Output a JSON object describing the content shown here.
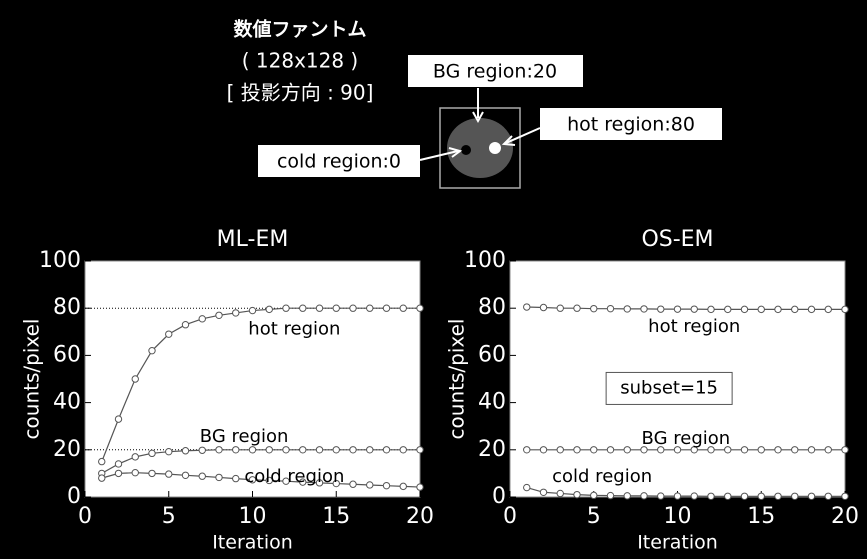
{
  "phantom": {
    "title_lines": [
      "数値ファントム",
      "( 128x128 )",
      "[ 投影方向 : 90]"
    ],
    "labels": [
      "BG region:20",
      "hot region:80",
      "cold region:0"
    ]
  },
  "chart_data": [
    {
      "type": "line",
      "title": "ML-EM",
      "x_label": "Iteration",
      "y_label": "counts/pixel",
      "x": [
        1,
        2,
        3,
        4,
        5,
        6,
        7,
        8,
        9,
        10,
        11,
        12,
        13,
        14,
        15,
        16,
        17,
        18,
        19,
        20
      ],
      "xlim": [
        0,
        20
      ],
      "xticks": [
        0,
        5,
        10,
        15,
        20
      ],
      "ylim": [
        0,
        100
      ],
      "yticks": [
        0,
        20,
        40,
        60,
        80,
        100
      ],
      "reference_lines": [
        80,
        20
      ],
      "series": [
        {
          "name": "hot region",
          "color": "#555555",
          "values": [
            15,
            33,
            50,
            62,
            69,
            73,
            75.5,
            77,
            78,
            79,
            79.5,
            80,
            80,
            80,
            80,
            80,
            80,
            80,
            80,
            80
          ]
        },
        {
          "name": "BG region",
          "color": "#555555",
          "values": [
            10,
            14,
            17,
            18.5,
            19.2,
            19.6,
            19.8,
            20,
            20,
            20,
            20,
            20,
            20,
            20,
            20,
            20,
            20,
            20,
            20,
            20
          ]
        },
        {
          "name": "cold region",
          "color": "#555555",
          "values": [
            8,
            10,
            10.3,
            10,
            9.7,
            9.2,
            8.8,
            8.3,
            7.8,
            7.3,
            7,
            6.7,
            6.3,
            6,
            5.7,
            5.4,
            5.1,
            4.8,
            4.5,
            4.2
          ]
        }
      ]
    },
    {
      "type": "line",
      "title": "OS-EM",
      "x_label": "Iteration",
      "y_label": "counts/pixel",
      "x": [
        1,
        2,
        3,
        4,
        5,
        6,
        7,
        8,
        9,
        10,
        11,
        12,
        13,
        14,
        15,
        16,
        17,
        18,
        19,
        20
      ],
      "xlim": [
        0,
        20
      ],
      "xticks": [
        0,
        5,
        10,
        15,
        20
      ],
      "ylim": [
        0,
        100
      ],
      "yticks": [
        0,
        20,
        40,
        60,
        80,
        100
      ],
      "annotations": [
        "subset=15"
      ],
      "series": [
        {
          "name": "hot region",
          "color": "#555555",
          "values": [
            80.5,
            80.3,
            80,
            80,
            79.8,
            79.8,
            79.7,
            79.7,
            79.6,
            79.6,
            79.6,
            79.5,
            79.5,
            79.5,
            79.5,
            79.5,
            79.5,
            79.5,
            79.5,
            79.5
          ]
        },
        {
          "name": "BG region",
          "color": "#555555",
          "values": [
            20,
            20,
            20,
            20,
            20,
            20,
            20,
            20,
            20,
            20,
            20,
            20,
            20,
            20,
            20,
            20,
            20,
            20,
            20,
            20
          ]
        },
        {
          "name": "cold region",
          "color": "#555555",
          "values": [
            4,
            2,
            1.5,
            1,
            0.7,
            0.6,
            0.5,
            0.5,
            0.4,
            0.4,
            0.4,
            0.3,
            0.3,
            0.3,
            0.3,
            0.3,
            0.3,
            0.3,
            0.3,
            0.3
          ]
        }
      ]
    }
  ]
}
